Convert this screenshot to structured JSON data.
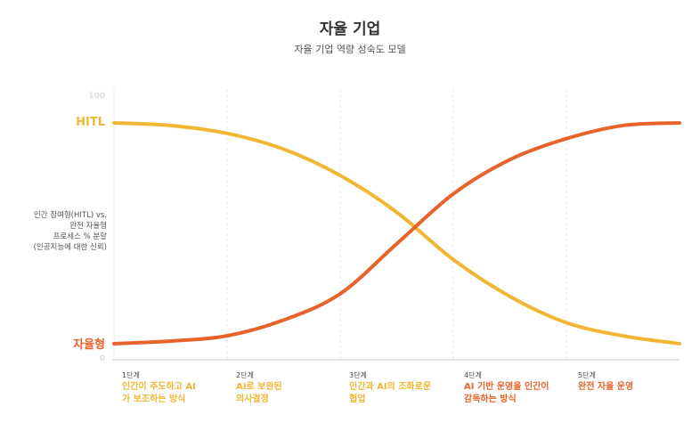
{
  "title": "자율 기업",
  "subtitle": "자율 기업 역량 성숙도 모델",
  "colors": {
    "hitl": "#F2B634",
    "autonomous": "#E8632A",
    "stage_text_1": "#F2B634",
    "stage_text_2": "#F2B634",
    "stage_text_3": "#F2B634",
    "stage_text_4": "#E8632A",
    "stage_text_5": "#E8632A"
  },
  "y_axis": {
    "label_lines": [
      "인간 참여형(HITL) vs.",
      "완전 자율형",
      "프로세스 % 분할",
      "(인공지능에 대한 신뢰)"
    ],
    "top_label": "HITL",
    "bottom_label": "자율형",
    "tick_top": "100",
    "tick_bottom": "0"
  },
  "stages": [
    {
      "num": "1단계",
      "desc": "인간이 주도하고 AI\n가 보조하는 방식"
    },
    {
      "num": "2단계",
      "desc": "AI로 보완된\n의사결정"
    },
    {
      "num": "3단계",
      "desc": "인간과 AI의 조화로운\n협업"
    },
    {
      "num": "4단계",
      "desc": "AI 기반 운영을 인간이\n감독하는 방식"
    },
    {
      "num": "5단계",
      "desc": "완전 자율 운영"
    }
  ],
  "chart_data": {
    "type": "line",
    "title": "자율 기업",
    "subtitle": "자율 기업 역량 성숙도 모델",
    "ylabel": "인간 참여형(HITL) vs. 완전 자율형 프로세스 % 분할 (인공지능에 대한 신뢰)",
    "ylim": [
      0,
      100
    ],
    "x_range": [
      0,
      5
    ],
    "categories": [
      "1단계",
      "2단계",
      "3단계",
      "4단계",
      "5단계"
    ],
    "grid": "vertical dashed at stage boundaries",
    "series": [
      {
        "name": "HITL",
        "color": "#F2B634",
        "x": [
          0,
          0.5,
          1,
          1.5,
          2,
          2.5,
          3,
          3.5,
          4,
          4.5,
          5
        ],
        "values": [
          90,
          89,
          86,
          80,
          70,
          56,
          38,
          24,
          14,
          9,
          6
        ]
      },
      {
        "name": "자율형",
        "color": "#E8632A",
        "x": [
          0,
          0.5,
          1,
          1.5,
          2,
          2.5,
          3,
          3.5,
          4,
          4.5,
          5
        ],
        "values": [
          6,
          7,
          9,
          15,
          25,
          44,
          63,
          76,
          84,
          89,
          90
        ]
      }
    ]
  }
}
